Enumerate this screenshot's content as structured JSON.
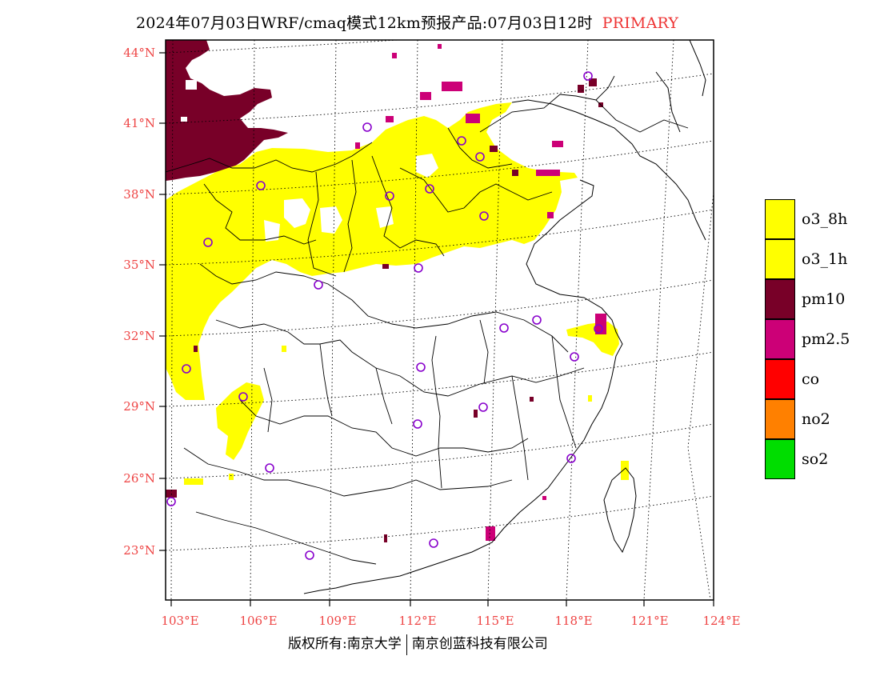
{
  "header": {
    "title": "2024年07月03日WRF/cmaq模式12km预报产品:07月03日12时",
    "primary_label": "PRIMARY"
  },
  "map": {
    "lat_labels": [
      "44°N",
      "41°N",
      "38°N",
      "35°N",
      "32°N",
      "29°N",
      "26°N",
      "23°N"
    ],
    "lon_labels": [
      "103°E",
      "106°E",
      "109°E",
      "112°E",
      "115°E",
      "118°E",
      "121°E",
      "124°E"
    ],
    "colors": {
      "o3": "#ffff00",
      "pm10": "#780028",
      "pm25": "#cc0077",
      "station_marker": "#8800cc",
      "coastline": "#000000",
      "grid": "#000000",
      "axis_label": "#ee4444"
    }
  },
  "legend": {
    "items": [
      {
        "label": "o3_8h",
        "color": "#ffff00"
      },
      {
        "label": "o3_1h",
        "color": "#ffff00"
      },
      {
        "label": "pm10",
        "color": "#780028"
      },
      {
        "label": "pm2.5",
        "color": "#cc0077"
      },
      {
        "label": "co",
        "color": "#ff0000"
      },
      {
        "label": "no2",
        "color": "#ff8000"
      },
      {
        "label": "so2",
        "color": "#00dd00"
      }
    ]
  },
  "footer": {
    "left": "版权所有:南京大学",
    "right": "南京创蓝科技有限公司"
  }
}
